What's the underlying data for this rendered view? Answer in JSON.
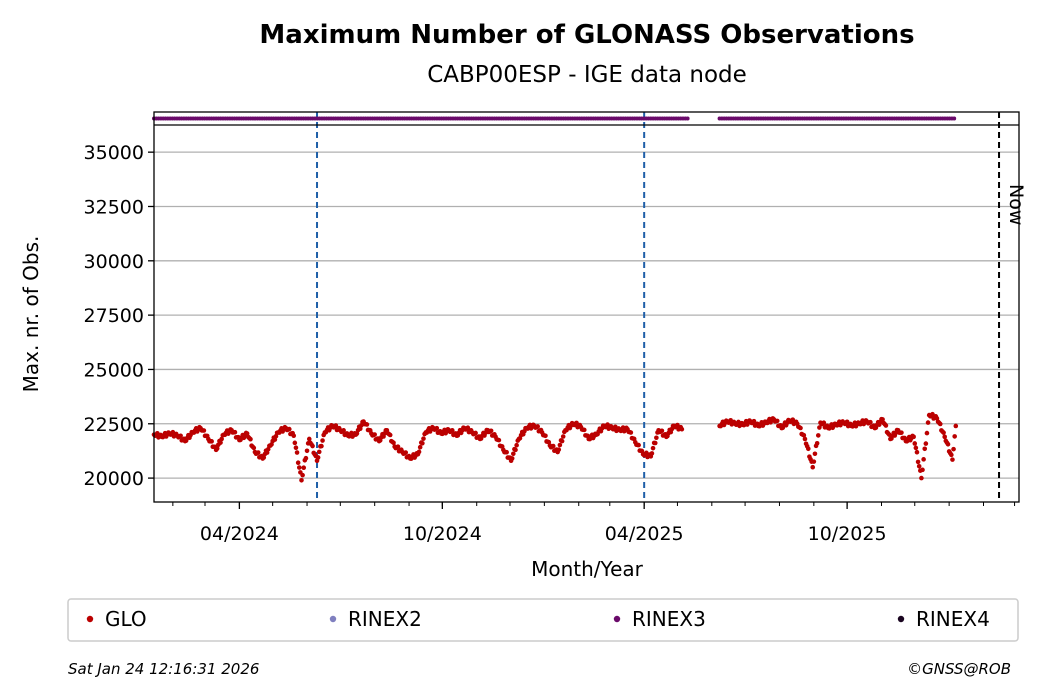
{
  "chart_data": {
    "type": "scatter",
    "title": "Maximum Number of GLONASS Observations",
    "subtitle": "CABP00ESP - IGE data node",
    "xlabel": "Month/Year",
    "ylabel": "Max. nr. of Obs.",
    "x_range": [
      "2024-01-15",
      "2026-03-05"
    ],
    "ylim": [
      18900,
      36250
    ],
    "y_ticks": [
      20000,
      22500,
      25000,
      27500,
      30000,
      32500,
      35000
    ],
    "y_tick_labels": [
      "20000",
      "22500",
      "25000",
      "27500",
      "30000",
      "32500",
      "35000"
    ],
    "x_ticks": [
      "2024-04-01",
      "2024-10-01",
      "2025-04-01",
      "2025-10-01"
    ],
    "x_tick_labels": [
      "04/2024",
      "10/2024",
      "04/2025",
      "10/2025"
    ],
    "grid": "horizontal",
    "vertical_markers": [
      {
        "date": "2024-06-10",
        "style": "dashed",
        "color": "#1f5fa8",
        "label": ""
      },
      {
        "date": "2025-04-01",
        "style": "dashed",
        "color": "#1f5fa8",
        "label": ""
      },
      {
        "date": "2026-02-15",
        "style": "dashed",
        "color": "#000000",
        "label": "Now"
      }
    ],
    "format_strip": {
      "series": "RINEX3",
      "color": "#6a0a6a",
      "segments": [
        [
          "2024-01-15",
          "2025-05-11"
        ],
        [
          "2025-06-08",
          "2026-01-07"
        ]
      ]
    },
    "series": [
      {
        "name": "GLO",
        "color": "#bb0000",
        "points": [
          [
            "2024-01-15",
            22000
          ],
          [
            "2024-01-22",
            21900
          ],
          [
            "2024-01-29",
            22050
          ],
          [
            "2024-02-05",
            21950
          ],
          [
            "2024-02-12",
            21700
          ],
          [
            "2024-02-19",
            22100
          ],
          [
            "2024-02-26",
            22300
          ],
          [
            "2024-03-04",
            21800
          ],
          [
            "2024-03-11",
            21300
          ],
          [
            "2024-03-18",
            22000
          ],
          [
            "2024-03-25",
            22200
          ],
          [
            "2024-04-01",
            21750
          ],
          [
            "2024-04-08",
            22050
          ],
          [
            "2024-04-15",
            21200
          ],
          [
            "2024-04-22",
            20900
          ],
          [
            "2024-04-29",
            21500
          ],
          [
            "2024-05-06",
            22100
          ],
          [
            "2024-05-13",
            22300
          ],
          [
            "2024-05-20",
            21950
          ],
          [
            "2024-05-27",
            19900
          ],
          [
            "2024-06-03",
            21800
          ],
          [
            "2024-06-10",
            20800
          ],
          [
            "2024-06-17",
            22100
          ],
          [
            "2024-06-24",
            22400
          ],
          [
            "2024-07-01",
            22200
          ],
          [
            "2024-07-08",
            21950
          ],
          [
            "2024-07-15",
            22000
          ],
          [
            "2024-07-22",
            22600
          ],
          [
            "2024-07-29",
            22050
          ],
          [
            "2024-08-05",
            21700
          ],
          [
            "2024-08-12",
            22200
          ],
          [
            "2024-08-19",
            21450
          ],
          [
            "2024-08-26",
            21200
          ],
          [
            "2024-09-02",
            20900
          ],
          [
            "2024-09-09",
            21100
          ],
          [
            "2024-09-16",
            22100
          ],
          [
            "2024-09-23",
            22300
          ],
          [
            "2024-09-30",
            22050
          ],
          [
            "2024-10-07",
            22200
          ],
          [
            "2024-10-14",
            21950
          ],
          [
            "2024-10-21",
            22300
          ],
          [
            "2024-10-28",
            22100
          ],
          [
            "2024-11-04",
            21800
          ],
          [
            "2024-11-11",
            22200
          ],
          [
            "2024-11-18",
            21900
          ],
          [
            "2024-11-25",
            21300
          ],
          [
            "2024-12-02",
            20800
          ],
          [
            "2024-12-09",
            21800
          ],
          [
            "2024-12-16",
            22300
          ],
          [
            "2024-12-23",
            22400
          ],
          [
            "2024-12-30",
            22100
          ],
          [
            "2025-01-06",
            21500
          ],
          [
            "2025-01-13",
            21200
          ],
          [
            "2025-01-20",
            22200
          ],
          [
            "2025-01-27",
            22500
          ],
          [
            "2025-02-03",
            22350
          ],
          [
            "2025-02-10",
            21800
          ],
          [
            "2025-02-17",
            22000
          ],
          [
            "2025-02-24",
            22400
          ],
          [
            "2025-03-03",
            22300
          ],
          [
            "2025-03-10",
            22200
          ],
          [
            "2025-03-17",
            22250
          ],
          [
            "2025-03-24",
            21650
          ],
          [
            "2025-03-31",
            21100
          ],
          [
            "2025-04-07",
            21000
          ],
          [
            "2025-04-14",
            22200
          ],
          [
            "2025-04-21",
            21900
          ],
          [
            "2025-04-28",
            22400
          ],
          [
            "2025-05-05",
            22250
          ],
          [
            "2025-06-08",
            22400
          ],
          [
            "2025-06-15",
            22600
          ],
          [
            "2025-06-22",
            22500
          ],
          [
            "2025-06-29",
            22450
          ],
          [
            "2025-07-06",
            22600
          ],
          [
            "2025-07-13",
            22400
          ],
          [
            "2025-07-20",
            22550
          ],
          [
            "2025-07-27",
            22700
          ],
          [
            "2025-08-03",
            22300
          ],
          [
            "2025-08-10",
            22650
          ],
          [
            "2025-08-17",
            22500
          ],
          [
            "2025-08-24",
            21800
          ],
          [
            "2025-08-31",
            20500
          ],
          [
            "2025-09-07",
            22550
          ],
          [
            "2025-09-14",
            22300
          ],
          [
            "2025-09-21",
            22450
          ],
          [
            "2025-09-28",
            22550
          ],
          [
            "2025-10-05",
            22400
          ],
          [
            "2025-10-12",
            22500
          ],
          [
            "2025-10-19",
            22600
          ],
          [
            "2025-10-26",
            22300
          ],
          [
            "2025-11-02",
            22700
          ],
          [
            "2025-11-09",
            21800
          ],
          [
            "2025-11-16",
            22200
          ],
          [
            "2025-11-23",
            21700
          ],
          [
            "2025-11-30",
            21900
          ],
          [
            "2025-12-07",
            20000
          ],
          [
            "2025-12-14",
            22900
          ],
          [
            "2025-12-21",
            22750
          ],
          [
            "2025-12-28",
            21900
          ],
          [
            "2026-01-04",
            20850
          ],
          [
            "2026-01-07",
            22400
          ]
        ]
      },
      {
        "name": "RINEX2",
        "color": "#7f7fbf"
      },
      {
        "name": "RINEX3",
        "color": "#6a0a6a"
      },
      {
        "name": "RINEX4",
        "color": "#1a0520"
      }
    ],
    "legend_placement": "bottom"
  },
  "footer": {
    "timestamp": "Sat Jan 24 12:16:31 2026",
    "credit": "©GNSS@ROB"
  }
}
